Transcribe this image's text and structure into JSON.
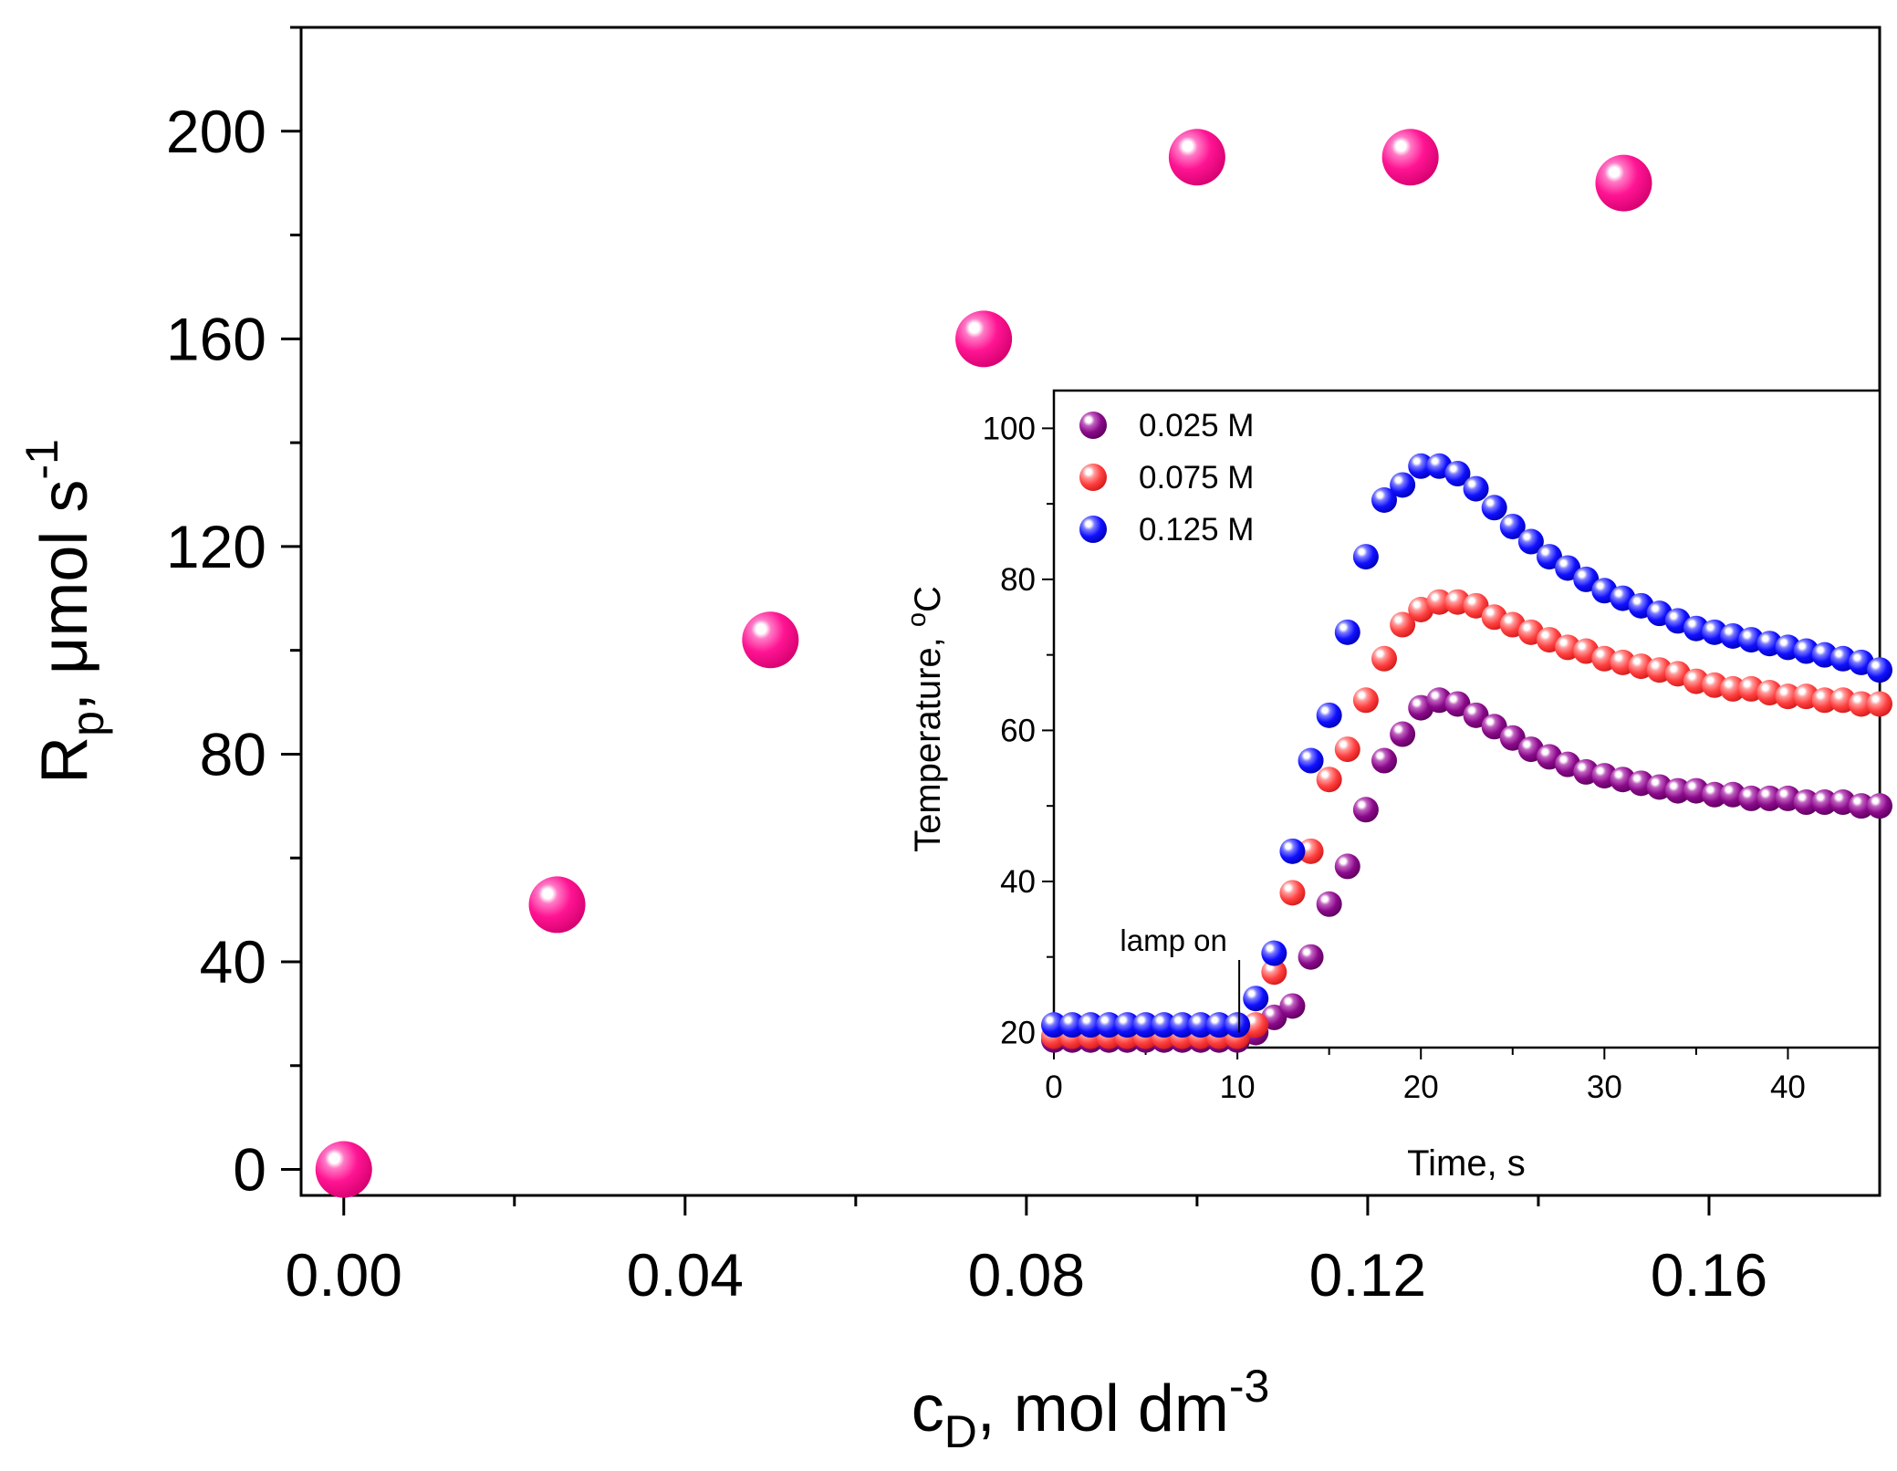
{
  "colors": {
    "main_marker": "#ff1493",
    "purple": "#8b0a8b",
    "red": "#ff4040",
    "blue": "#1010ff"
  },
  "chart_data": [
    {
      "type": "scatter",
      "xlabel_main": "c",
      "xlabel_sub": "D",
      "xlabel_rest": ", mol dm",
      "xlabel_sup": "-3",
      "ylabel_main": "R",
      "ylabel_sub": "p",
      "ylabel_rest": ", μmol s",
      "ylabel_sup": "-1",
      "xlim": [
        -0.005,
        0.18
      ],
      "ylim": [
        -5,
        220
      ],
      "x_ticks": [
        0.0,
        0.04,
        0.08,
        0.12,
        0.16
      ],
      "x_tick_labels": [
        "0.00",
        "0.04",
        "0.08",
        "0.12",
        "0.16"
      ],
      "y_ticks": [
        0,
        40,
        80,
        120,
        160,
        200
      ],
      "y_tick_labels": [
        "0",
        "40",
        "80",
        "120",
        "160",
        "200"
      ],
      "series": [
        {
          "x": [
            0.0,
            0.025,
            0.05,
            0.075,
            0.1,
            0.125,
            0.15
          ],
          "y": [
            0,
            51,
            102,
            160,
            195,
            195,
            190
          ]
        }
      ]
    },
    {
      "type": "scatter",
      "xlabel": "Time, s",
      "ylabel_main": "Temperature, ",
      "ylabel_sup": "o",
      "ylabel_rest": "C",
      "xlim": [
        0,
        45
      ],
      "ylim": [
        18,
        105
      ],
      "x_ticks": [
        0,
        10,
        20,
        30,
        40
      ],
      "x_tick_labels": [
        "0",
        "10",
        "20",
        "30",
        "40"
      ],
      "y_ticks": [
        20,
        40,
        60,
        80,
        100
      ],
      "y_tick_labels": [
        "20",
        "40",
        "60",
        "80",
        "100"
      ],
      "legend_position": "top-left",
      "annotation": {
        "text": "lamp on",
        "x": 10,
        "y": 20
      },
      "series": [
        {
          "name": "0.025 M",
          "color": "purple",
          "x": [
            0,
            1,
            2,
            3,
            4,
            5,
            6,
            7,
            8,
            9,
            10,
            11,
            12,
            13,
            14,
            15,
            16,
            17,
            18,
            19,
            20,
            21,
            22,
            23,
            24,
            25,
            26,
            27,
            28,
            29,
            30,
            31,
            32,
            33,
            34,
            35,
            36,
            37,
            38,
            39,
            40,
            41,
            42,
            43,
            44,
            45
          ],
          "y": [
            19,
            19,
            19,
            19,
            19,
            19,
            19,
            19,
            19,
            19,
            19,
            20,
            22,
            23.5,
            30,
            37,
            42,
            49.5,
            56,
            59.5,
            63,
            64,
            63.5,
            62,
            60.5,
            59,
            57.5,
            56.5,
            55.5,
            54.5,
            54,
            53.5,
            53,
            52.5,
            52,
            52,
            51.5,
            51.5,
            51,
            51,
            51,
            50.5,
            50.5,
            50.5,
            50,
            50
          ]
        },
        {
          "name": "0.075 M",
          "color": "red",
          "x": [
            0,
            1,
            2,
            3,
            4,
            5,
            6,
            7,
            8,
            9,
            10,
            11,
            12,
            13,
            14,
            15,
            16,
            17,
            18,
            19,
            20,
            21,
            22,
            23,
            24,
            25,
            26,
            27,
            28,
            29,
            30,
            31,
            32,
            33,
            34,
            35,
            36,
            37,
            38,
            39,
            40,
            41,
            42,
            43,
            44,
            45
          ],
          "y": [
            19.5,
            19.5,
            19.5,
            19.5,
            19.5,
            19.5,
            19.5,
            19.5,
            19.5,
            19.5,
            19.5,
            21,
            28,
            38.5,
            44,
            53.5,
            57.5,
            64,
            69.5,
            74,
            76,
            77,
            77,
            76.5,
            75,
            74,
            73,
            72,
            71,
            70.5,
            69.5,
            69,
            68.5,
            68,
            67.5,
            66.5,
            66,
            65.5,
            65.5,
            65,
            64.5,
            64.5,
            64,
            64,
            63.5,
            63.5
          ]
        },
        {
          "name": "0.125 M",
          "color": "blue",
          "x": [
            0,
            1,
            2,
            3,
            4,
            5,
            6,
            7,
            8,
            9,
            10,
            11,
            12,
            13,
            14,
            15,
            16,
            17,
            18,
            19,
            20,
            21,
            22,
            23,
            24,
            25,
            26,
            27,
            28,
            29,
            30,
            31,
            32,
            33,
            34,
            35,
            36,
            37,
            38,
            39,
            40,
            41,
            42,
            43,
            44,
            45
          ],
          "y": [
            21,
            21,
            21,
            21,
            21,
            21,
            21,
            21,
            21,
            21,
            21,
            24.5,
            30.5,
            44,
            56,
            62,
            73,
            83,
            90.5,
            92.5,
            95,
            95,
            94,
            92,
            89.5,
            87,
            85,
            83,
            81.5,
            80,
            78.5,
            77.5,
            76.5,
            75.5,
            74.5,
            73.5,
            73,
            72.5,
            72,
            71.5,
            71,
            70.5,
            70,
            69.5,
            69,
            68
          ]
        }
      ]
    }
  ]
}
